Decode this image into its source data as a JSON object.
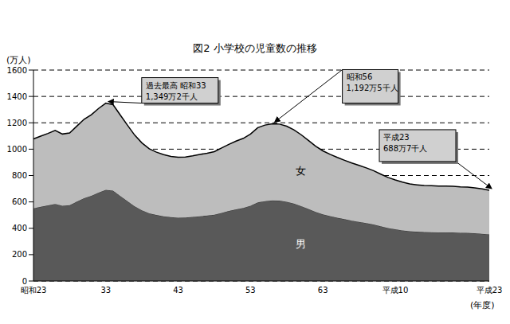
{
  "chart_data": {
    "type": "area",
    "title": "図2 小学校の児童数の推移",
    "y_label": "(万人)",
    "x_label": "(年度)",
    "stacked": true,
    "grid": true,
    "categories": [
      "昭和23",
      null,
      null,
      null,
      null,
      null,
      null,
      null,
      null,
      null,
      "33",
      null,
      null,
      null,
      null,
      null,
      null,
      null,
      null,
      null,
      "43",
      null,
      null,
      null,
      null,
      null,
      null,
      null,
      null,
      null,
      "53",
      null,
      null,
      null,
      null,
      null,
      null,
      null,
      null,
      null,
      "63",
      null,
      null,
      null,
      null,
      null,
      null,
      null,
      null,
      null,
      "平成10",
      null,
      null,
      null,
      null,
      null,
      null,
      null,
      null,
      null,
      null,
      null,
      null,
      "平成23"
    ],
    "series": [
      {
        "name": "男",
        "color": "#595959",
        "values": [
          551.7,
          562.7,
          573.0,
          584.9,
          570.8,
          574.7,
          601.7,
          628.1,
          645.9,
          670.1,
          690.8,
          684.8,
          644.7,
          604.7,
          566.1,
          536.1,
          513.5,
          500.5,
          490.7,
          484.0,
          480.4,
          481.4,
          486.0,
          491.3,
          496.4,
          502.6,
          516.6,
          530.7,
          543.2,
          553.9,
          570.7,
          595.5,
          605.5,
          610.6,
          609.4,
          601.0,
          587.0,
          568.1,
          546.0,
          523.6,
          505.5,
          491.9,
          479.9,
          468.8,
          458.1,
          449.0,
          439.4,
          428.5,
          415.0,
          402.2,
          392.4,
          384.0,
          377.1,
          373.6,
          370.6,
          370.0,
          368.7,
          368.5,
          368.0,
          365.2,
          364.6,
          361.7,
          358.0,
          352.6
        ]
      },
      {
        "name": "女",
        "color": "#bdbdbd",
        "values": [
          525.8,
          536.4,
          546.1,
          557.4,
          544.0,
          547.8,
          573.4,
          598.6,
          615.7,
          638.6,
          658.4,
          652.7,
          614.4,
          576.4,
          539.6,
          511.0,
          489.5,
          477.1,
          467.7,
          461.3,
          457.9,
          458.9,
          463.3,
          468.3,
          473.2,
          479.0,
          492.3,
          505.8,
          517.7,
          528.0,
          543.9,
          567.5,
          577.2,
          581.9,
          580.8,
          572.9,
          559.5,
          541.4,
          520.5,
          499.0,
          481.8,
          468.8,
          457.4,
          446.9,
          436.6,
          427.9,
          418.9,
          408.5,
          395.6,
          383.3,
          374.0,
          366.0,
          359.5,
          356.1,
          353.3,
          352.7,
          351.4,
          351.2,
          350.8,
          348.1,
          347.6,
          344.7,
          341.3,
          336.1
        ]
      }
    ],
    "ylim": [
      0,
      1600
    ],
    "yticks": [
      0,
      200,
      400,
      600,
      800,
      1000,
      1200,
      1400,
      1600
    ],
    "annotations": [
      {
        "text": [
          "過去最高 昭和33",
          "1,349万2千人"
        ]
      },
      {
        "text": [
          "昭和56",
          "1,192万5千人"
        ]
      },
      {
        "text": [
          "平成23",
          "688万7千人"
        ]
      }
    ]
  }
}
